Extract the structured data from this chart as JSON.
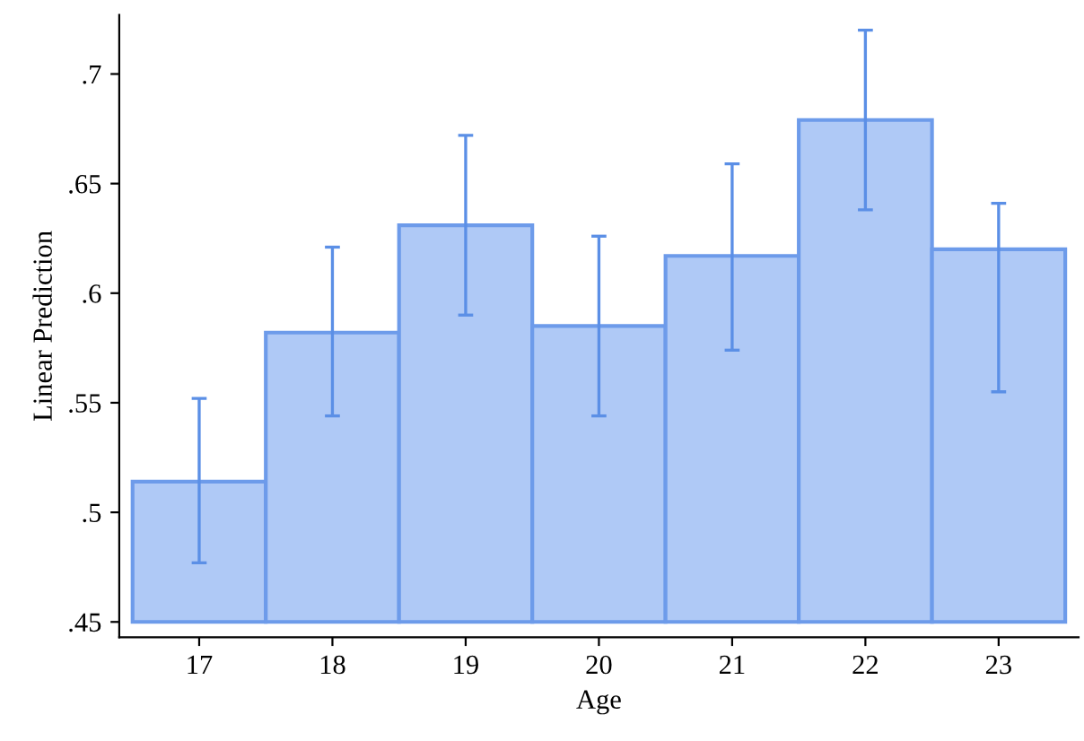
{
  "chart_data": {
    "type": "bar",
    "xlabel": "Age",
    "ylabel": "Linear Prediction",
    "categories": [
      "17",
      "18",
      "19",
      "20",
      "21",
      "22",
      "23"
    ],
    "base": [
      0.45,
      0.45,
      0.45,
      0.45,
      0.45,
      0.45,
      0.45
    ],
    "values": [
      0.064,
      0.132,
      0.181,
      0.135,
      0.167,
      0.229,
      0.17
    ],
    "errors": [
      [
        0.477,
        0.552
      ],
      [
        0.544,
        0.621
      ],
      [
        0.59,
        0.672
      ],
      [
        0.544,
        0.626
      ],
      [
        0.574,
        0.659
      ],
      [
        0.638,
        0.72
      ],
      [
        0.555,
        0.641
      ]
    ],
    "color": "#afc9f6",
    "ylim": [
      0.443,
      0.727
    ],
    "yticks": [
      {
        "value": 0.45,
        "label": ".45"
      },
      {
        "value": 0.5,
        "label": ".5"
      },
      {
        "value": 0.55,
        "label": ".55"
      },
      {
        "value": 0.6,
        "label": ".6"
      },
      {
        "value": 0.65,
        "label": ".65"
      },
      {
        "value": 0.7,
        "label": ".7"
      }
    ],
    "grid": false,
    "legend": false
  }
}
